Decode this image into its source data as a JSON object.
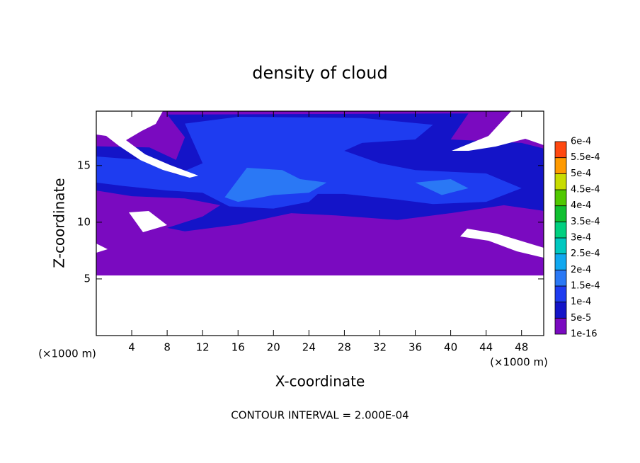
{
  "chart_data": {
    "type": "contour",
    "title": "density of cloud",
    "xlabel": "X-coordinate",
    "ylabel": "Z-coordinate",
    "x_unit": "(×1000 m)",
    "y_unit": "(×1000 m)",
    "annotation": "CONTOUR INTERVAL = 2.000E-04",
    "xlim": [
      0,
      50.5
    ],
    "ylim": [
      0,
      19.8
    ],
    "xticks": [
      4,
      8,
      12,
      16,
      20,
      24,
      28,
      32,
      36,
      40,
      44,
      48
    ],
    "yticks": [
      5,
      10,
      15
    ],
    "levels": [
      {
        "value": 1e-16,
        "label": "1e-16"
      },
      {
        "value": 5e-05,
        "label": "5e-5"
      },
      {
        "value": 0.0001,
        "label": "1e-4"
      },
      {
        "value": 0.00015,
        "label": "1.5e-4"
      },
      {
        "value": 0.0002,
        "label": "2e-4"
      },
      {
        "value": 0.00025,
        "label": "2.5e-4"
      },
      {
        "value": 0.0003,
        "label": "3e-4"
      },
      {
        "value": 0.00035,
        "label": "3.5e-4"
      },
      {
        "value": 0.0004,
        "label": "4e-4"
      },
      {
        "value": 0.00045,
        "label": "4.5e-4"
      },
      {
        "value": 0.0005,
        "label": "5e-4"
      },
      {
        "value": 0.00055,
        "label": "5.5e-4"
      },
      {
        "value": 0.0006,
        "label": "6e-4"
      }
    ],
    "level_colors": [
      "#7a0ac0",
      "#1414c8",
      "#1e3cf0",
      "#2a78f5",
      "#10a8f0",
      "#00c8c0",
      "#00d080",
      "#10c030",
      "#50c800",
      "#c8dc00",
      "#ff9a00",
      "#ff4810",
      "#ff9090"
    ],
    "regions": [
      {
        "level": 0,
        "points": [
          [
            0,
            5.3
          ],
          [
            50.5,
            5.3
          ],
          [
            50.5,
            19.8
          ],
          [
            0,
            19.8
          ]
        ]
      },
      {
        "level": 1,
        "points": [
          [
            0,
            16.7
          ],
          [
            6,
            16.6
          ],
          [
            9,
            15.5
          ],
          [
            10,
            17.5
          ],
          [
            8,
            19.5
          ],
          [
            42,
            19.6
          ],
          [
            40,
            17.3
          ],
          [
            48,
            17
          ],
          [
            50.5,
            16.5
          ],
          [
            50.5,
            11
          ],
          [
            46,
            11.5
          ],
          [
            40,
            10.8
          ],
          [
            34,
            10.2
          ],
          [
            27,
            10.6
          ],
          [
            22,
            10.8
          ],
          [
            16,
            9.8
          ],
          [
            10,
            9.2
          ],
          [
            8,
            9.5
          ],
          [
            12,
            10.5
          ],
          [
            14,
            11.5
          ],
          [
            10,
            12.1
          ],
          [
            4,
            12.3
          ],
          [
            0,
            12.8
          ]
        ]
      },
      {
        "level": 2,
        "points": [
          [
            0,
            15.8
          ],
          [
            5,
            15.5
          ],
          [
            9,
            14.2
          ],
          [
            12,
            15.2
          ],
          [
            10,
            18.7
          ],
          [
            16,
            19.3
          ],
          [
            30,
            19.2
          ],
          [
            38,
            18.6
          ],
          [
            36,
            17.3
          ],
          [
            30,
            17
          ],
          [
            28,
            16.3
          ],
          [
            32,
            15.2
          ],
          [
            36,
            14.6
          ],
          [
            44,
            14.3
          ],
          [
            48,
            13
          ],
          [
            44,
            11.8
          ],
          [
            38,
            11.6
          ],
          [
            34,
            12
          ],
          [
            28,
            12.5
          ],
          [
            25,
            12.5
          ],
          [
            24,
            11.8
          ],
          [
            20,
            11.2
          ],
          [
            15,
            11.4
          ],
          [
            12,
            12.6
          ],
          [
            8,
            12.8
          ],
          [
            3,
            13.2
          ],
          [
            0,
            13.5
          ]
        ]
      },
      {
        "level": 3,
        "points": [
          [
            14.5,
            12.2
          ],
          [
            17,
            14.8
          ],
          [
            21,
            14.6
          ],
          [
            23,
            13.8
          ],
          [
            26,
            13.5
          ],
          [
            24,
            12.6
          ],
          [
            20,
            12.4
          ],
          [
            16,
            11.8
          ]
        ]
      },
      {
        "level": 3,
        "points": [
          [
            36,
            13.5
          ],
          [
            40,
            13.8
          ],
          [
            42,
            13
          ],
          [
            39,
            12.4
          ]
        ]
      }
    ]
  }
}
